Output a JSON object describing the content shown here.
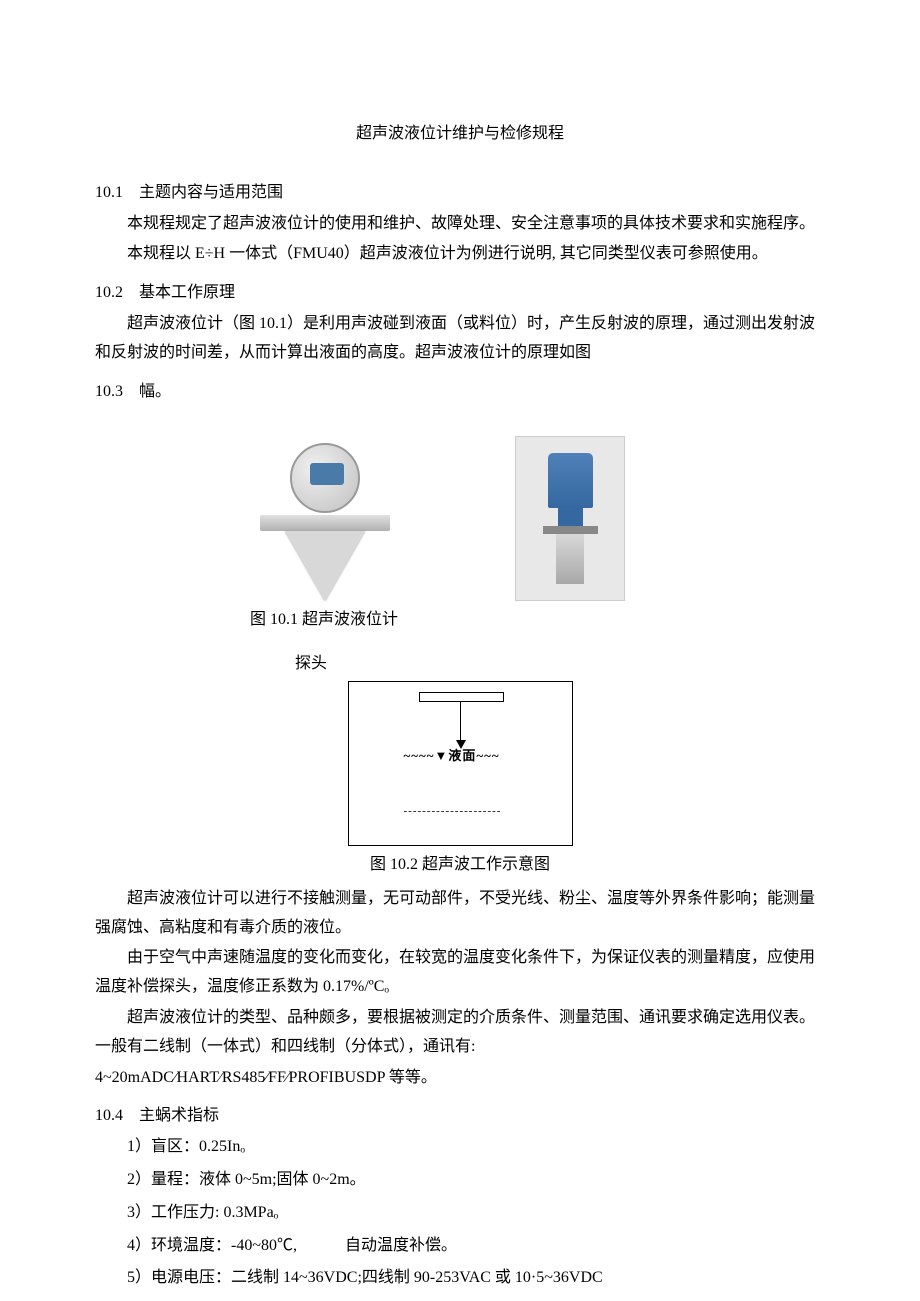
{
  "title": "超声波液位计维护与检修规程",
  "section_10_1": {
    "heading": "10.1　主题内容与适用范围",
    "p1": "本规程规定了超声波液位计的使用和维护、故障处理、安全注意事项的具体技术要求和实施程序。",
    "p2": "本规程以 E÷H 一体式（FMU40）超声波液位计为例进行说明, 其它同类型仪表可参照使用。"
  },
  "section_10_2": {
    "heading": "10.2　基本工作原理",
    "p1": "超声波液位计（图 10.1）是利用声波碰到液面（或料位）时，产生反射波的原理，通过测出发射波和反射波的时间差，从而计算出液面的高度。超声波液位计的原理如图"
  },
  "section_10_3": {
    "heading": "10.3　幅。"
  },
  "figure_10_1": {
    "caption": "图 10.1 超声波液位计"
  },
  "diagram": {
    "probe_label": "探头",
    "liquid_text": "~~~~▼液面~~~",
    "dashed": "---------------------",
    "caption": "图 10.2 超声波工作示意图"
  },
  "after_diagram": {
    "p1": "超声波液位计可以进行不接触测量，无可动部件，不受光线、粉尘、温度等外界条件影响；能测量强腐蚀、高粘度和有毒介质的液位。",
    "p2": "由于空气中声速随温度的变化而变化，在较宽的温度变化条件下，为保证仪表的测量精度，应使用温度补偿探头，温度修正系数为 0.17%/ºCₒ",
    "p3": "超声波液位计的类型、品种颇多，要根据被测定的介质条件、测量范围、通讯要求确定选用仪表。一般有二线制（一体式）和四线制（分体式），通讯有:",
    "p4": "4~20mADC⁄HART⁄RS485⁄FF⁄PROFIBUSDP 等等。"
  },
  "section_10_4": {
    "heading": "10.4　主蜗术指标",
    "items": [
      "1）盲区：0.25Inₒ",
      "2）量程：液体 0~5m;固体 0~2m。",
      "3）工作压力: 0.3MPaₒ",
      "4）环境温度：-40~80℃,　　　自动温度补偿。",
      "5）电源电压：二线制 14~36VDC;四线制 90-253VAC 或 10·5~36VDC"
    ]
  }
}
